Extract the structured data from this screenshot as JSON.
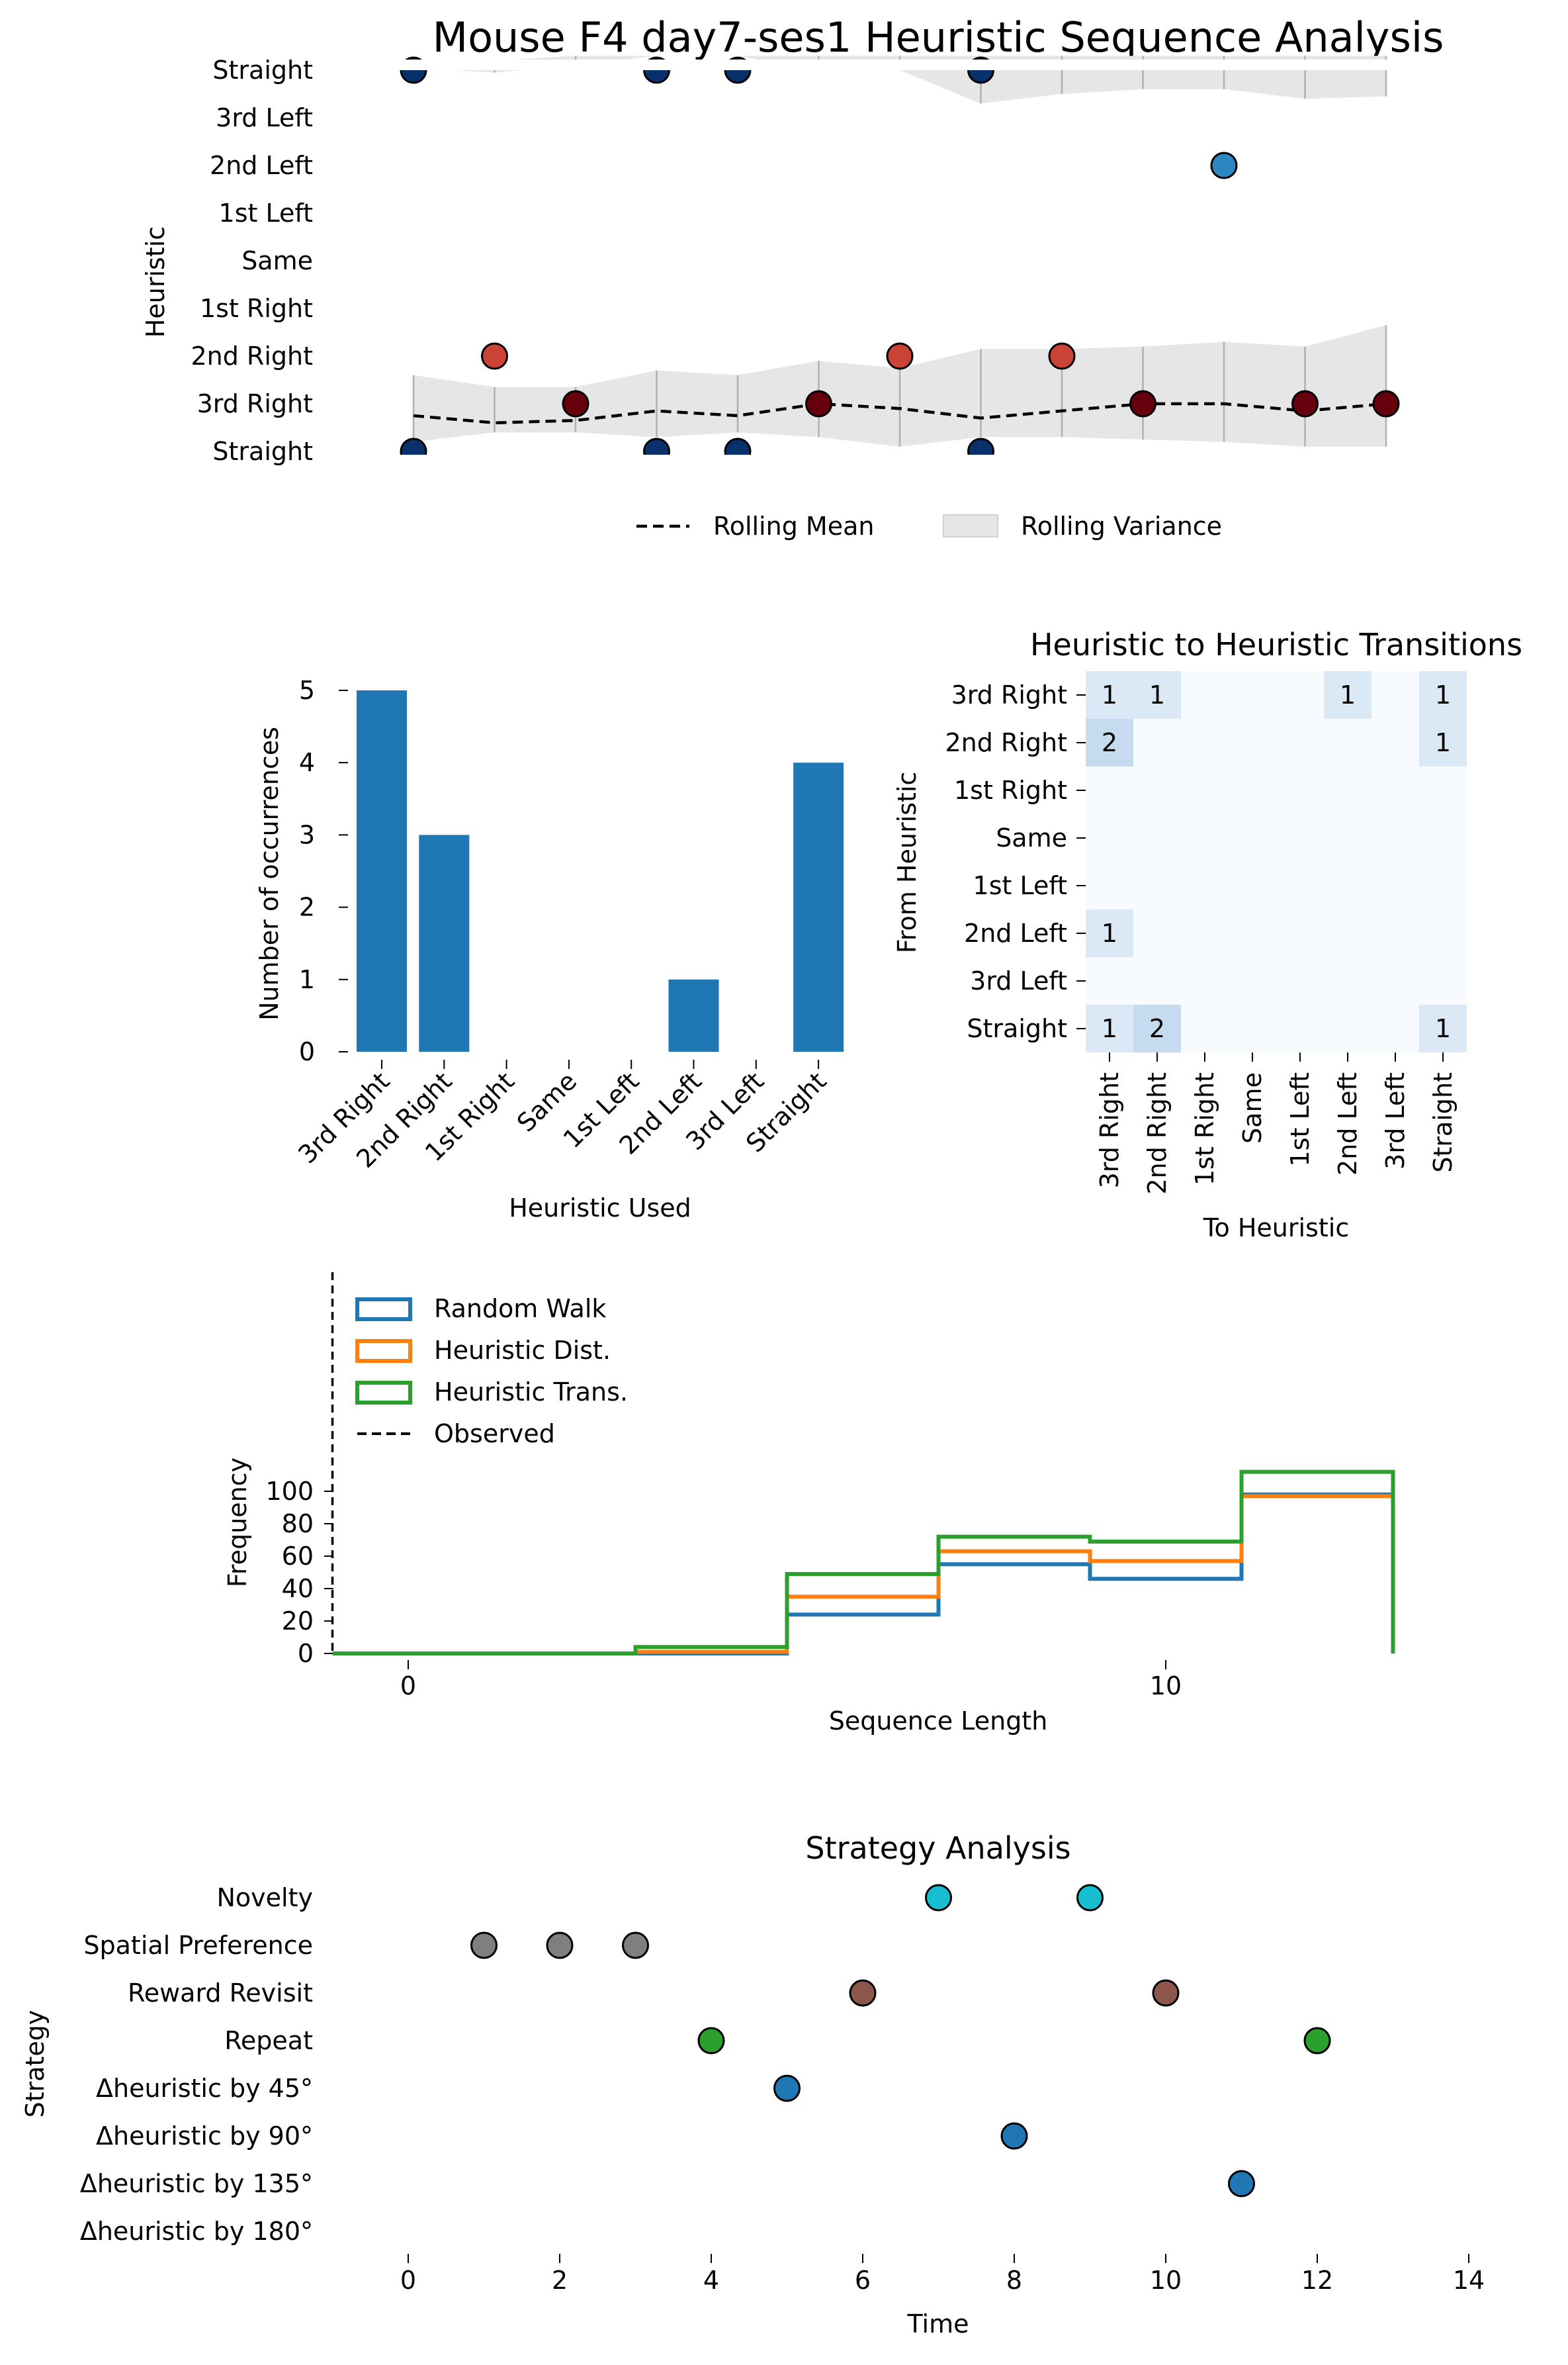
{
  "title": "Mouse F4 day7-ses1 Heuristic Sequence Analysis",
  "colors": {
    "heuristic": {
      "Straight": "#08306b",
      "3rd Right": "#67000d",
      "2nd Right": "#cb4335",
      "2nd Left": "#2e86c1"
    },
    "bar": "#1f77b4",
    "random_walk": "#1f77b4",
    "heuristic_dist": "#ff7f0e",
    "heuristic_trans": "#2ca02c",
    "strategy": {
      "Novelty": "#17becf",
      "Spatial Preference": "#7f7f7f",
      "Reward Revisit": "#8c564b",
      "Repeat": "#2ca02c",
      "Δheuristic by 45°": "#1f77b4",
      "Δheuristic by 90°": "#1f77b4",
      "Δheuristic by 135°": "#1f77b4"
    }
  },
  "chart_data": [
    {
      "id": "sequence",
      "type": "scatter",
      "ylabel": "Heuristic",
      "y_categories": [
        "Straight",
        "3rd Right",
        "2nd Right",
        "1st Right",
        "Same",
        "1st Left",
        "2nd Left",
        "3rd Left",
        "Straight"
      ],
      "x_range": [
        0,
        12
      ],
      "points": [
        {
          "x": 0,
          "y": "Straight"
        },
        {
          "x": 1,
          "y": "2nd Right"
        },
        {
          "x": 2,
          "y": "3rd Right"
        },
        {
          "x": 3,
          "y": "Straight"
        },
        {
          "x": 4,
          "y": "Straight"
        },
        {
          "x": 5,
          "y": "3rd Right"
        },
        {
          "x": 6,
          "y": "2nd Right"
        },
        {
          "x": 7,
          "y": "Straight"
        },
        {
          "x": 8,
          "y": "2nd Right"
        },
        {
          "x": 9,
          "y": "3rd Right"
        },
        {
          "x": 10,
          "y": "2nd Left"
        },
        {
          "x": 11,
          "y": "3rd Right"
        },
        {
          "x": 12,
          "y": "3rd Right"
        }
      ],
      "rolling_mean": [
        0.75,
        0.6,
        0.65,
        0.85,
        0.75,
        1.0,
        0.9,
        0.7,
        0.85,
        1.0,
        1.0,
        0.85,
        1.0
      ],
      "rolling_variance_lower": [
        0.2,
        0.4,
        0.4,
        0.3,
        0.4,
        0.3,
        0.1,
        0.3,
        0.3,
        0.25,
        0.2,
        0.1,
        0.1
      ],
      "rolling_variance_upper": [
        1.6,
        1.35,
        1.35,
        1.7,
        1.6,
        1.9,
        1.75,
        2.15,
        2.15,
        2.2,
        2.3,
        2.2,
        2.65
      ],
      "upper_band_top": [
        8.05,
        7.95,
        8.1,
        8.3,
        8.3,
        8.0,
        8.0,
        7.3,
        7.5,
        7.6,
        7.6,
        7.4,
        7.45
      ],
      "upper_band_bottom": [
        8.2,
        8.2,
        8.3,
        8.3,
        8.3,
        8.3,
        8.3,
        8.3,
        8.3,
        8.3,
        8.3,
        8.3,
        8.3
      ],
      "legend": [
        "Rolling Mean",
        "Rolling Variance"
      ]
    },
    {
      "id": "counts",
      "type": "bar",
      "xlabel": "Heuristic Used",
      "ylabel": "Number of occurrences",
      "categories": [
        "3rd Right",
        "2nd Right",
        "1st Right",
        "Same",
        "1st Left",
        "2nd Left",
        "3rd Left",
        "Straight"
      ],
      "values": [
        5,
        3,
        0,
        0,
        0,
        1,
        0,
        4
      ],
      "yticks": [
        0,
        1,
        2,
        3,
        4,
        5
      ],
      "ylim": [
        0,
        5
      ]
    },
    {
      "id": "transitions",
      "type": "heatmap",
      "title": "Heuristic to Heuristic Transitions",
      "xlabel": "To Heuristic",
      "ylabel": "From Heuristic",
      "rows": [
        "3rd Right",
        "2nd Right",
        "1st Right",
        "Same",
        "1st Left",
        "2nd Left",
        "3rd Left",
        "Straight"
      ],
      "cols": [
        "3rd Right",
        "2nd Right",
        "1st Right",
        "Same",
        "1st Left",
        "2nd Left",
        "3rd Left",
        "Straight"
      ],
      "matrix": [
        [
          1,
          1,
          0,
          0,
          0,
          1,
          0,
          1
        ],
        [
          2,
          0,
          0,
          0,
          0,
          0,
          0,
          1
        ],
        [
          0,
          0,
          0,
          0,
          0,
          0,
          0,
          0
        ],
        [
          0,
          0,
          0,
          0,
          0,
          0,
          0,
          0
        ],
        [
          0,
          0,
          0,
          0,
          0,
          0,
          0,
          0
        ],
        [
          1,
          0,
          0,
          0,
          0,
          0,
          0,
          0
        ],
        [
          0,
          0,
          0,
          0,
          0,
          0,
          0,
          0
        ],
        [
          1,
          2,
          0,
          0,
          0,
          0,
          0,
          1
        ]
      ]
    },
    {
      "id": "lengths",
      "type": "line",
      "xlabel": "Sequence Length",
      "ylabel": "Frequency",
      "xticks": [
        0,
        10
      ],
      "yticks": [
        0,
        20,
        40,
        60,
        80,
        100
      ],
      "xlim": [
        -1,
        14.5
      ],
      "ylim": [
        0,
        118
      ],
      "bin_edges": [
        -1,
        3,
        5,
        7,
        9,
        11,
        13
      ],
      "series": [
        {
          "name": "Random Walk",
          "values": [
            0,
            0,
            24,
            55,
            46,
            98
          ]
        },
        {
          "name": "Heuristic Dist.",
          "values": [
            0,
            1,
            35,
            63,
            57,
            97
          ]
        },
        {
          "name": "Heuristic Trans.",
          "values": [
            0,
            4,
            49,
            72,
            69,
            112
          ]
        }
      ],
      "observed": {
        "name": "Observed",
        "x": -1
      }
    },
    {
      "id": "strategy",
      "type": "scatter",
      "title": "Strategy Analysis",
      "xlabel": "Time",
      "ylabel": "Strategy",
      "xticks": [
        0,
        2,
        4,
        6,
        8,
        10,
        12,
        14
      ],
      "xlim": [
        0,
        14
      ],
      "categories": [
        "Novelty",
        "Spatial Preference",
        "Reward Revisit",
        "Repeat",
        "Δheuristic by 45°",
        "Δheuristic by 90°",
        "Δheuristic by 135°",
        "Δheuristic by 180°"
      ],
      "points": [
        {
          "x": 1,
          "y": "Spatial Preference"
        },
        {
          "x": 2,
          "y": "Spatial Preference"
        },
        {
          "x": 3,
          "y": "Spatial Preference"
        },
        {
          "x": 4,
          "y": "Repeat"
        },
        {
          "x": 5,
          "y": "Δheuristic by 45°"
        },
        {
          "x": 6,
          "y": "Reward Revisit"
        },
        {
          "x": 7,
          "y": "Novelty"
        },
        {
          "x": 8,
          "y": "Δheuristic by 90°"
        },
        {
          "x": 9,
          "y": "Novelty"
        },
        {
          "x": 10,
          "y": "Reward Revisit"
        },
        {
          "x": 11,
          "y": "Δheuristic by 135°"
        },
        {
          "x": 12,
          "y": "Repeat"
        }
      ]
    }
  ]
}
